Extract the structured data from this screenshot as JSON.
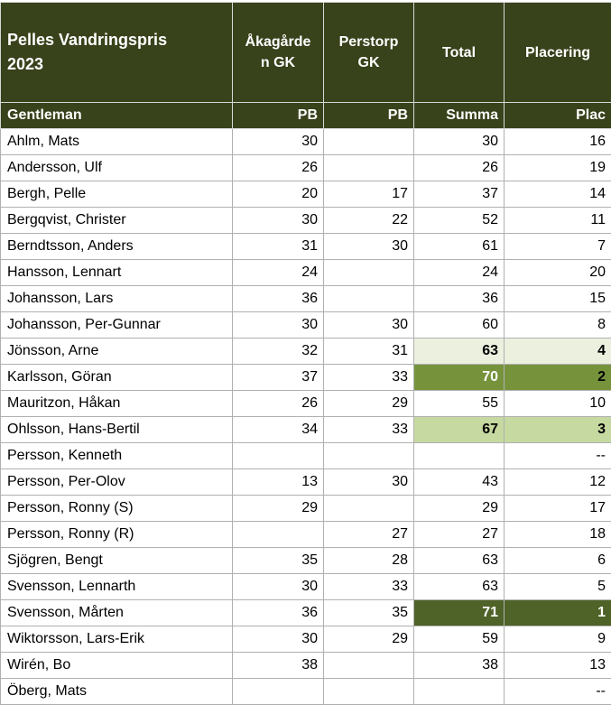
{
  "colors": {
    "header_bg": "#38421B",
    "rank1_bg": "#4F6228",
    "rank2_bg": "#76933C",
    "rank3_bg": "#C6D9A0",
    "rank4_bg": "#EBF1DE",
    "grid_line": "#B0B0B0",
    "header_line": "#D8D8D8",
    "text_dark": "#000000",
    "text_light": "#FFFFFF"
  },
  "table": {
    "title": "Pelles Vandringspris\n2023",
    "columns": {
      "akagarden": "Åkagårde\nn GK",
      "perstorp": "Perstorp\nGK",
      "total": "Total",
      "placering": "Placering"
    },
    "subheader": {
      "gentleman": "Gentleman",
      "pb1": "PB",
      "pb2": "PB",
      "summa": "Summa",
      "plac": "Plac"
    },
    "rows": [
      {
        "name": "Ahlm, Mats",
        "akagarden": "30",
        "perstorp": "",
        "total": "30",
        "placering": "16",
        "highlight": ""
      },
      {
        "name": "Andersson, Ulf",
        "akagarden": "26",
        "perstorp": "",
        "total": "26",
        "placering": "19",
        "highlight": ""
      },
      {
        "name": "Bergh, Pelle",
        "akagarden": "20",
        "perstorp": "17",
        "total": "37",
        "placering": "14",
        "highlight": ""
      },
      {
        "name": "Bergqvist, Christer",
        "akagarden": "30",
        "perstorp": "22",
        "total": "52",
        "placering": "11",
        "highlight": ""
      },
      {
        "name": "Berndtsson, Anders",
        "akagarden": "31",
        "perstorp": "30",
        "total": "61",
        "placering": "7",
        "highlight": ""
      },
      {
        "name": "Hansson, Lennart",
        "akagarden": "24",
        "perstorp": "",
        "total": "24",
        "placering": "20",
        "highlight": ""
      },
      {
        "name": "Johansson, Lars",
        "akagarden": "36",
        "perstorp": "",
        "total": "36",
        "placering": "15",
        "highlight": ""
      },
      {
        "name": "Johansson, Per-Gunnar",
        "akagarden": "30",
        "perstorp": "30",
        "total": "60",
        "placering": "8",
        "highlight": ""
      },
      {
        "name": "Jönsson, Arne",
        "akagarden": "32",
        "perstorp": "31",
        "total": "63",
        "placering": "4",
        "highlight": "hl4"
      },
      {
        "name": "Karlsson, Göran",
        "akagarden": "37",
        "perstorp": "33",
        "total": "70",
        "placering": "2",
        "highlight": "hl2"
      },
      {
        "name": "Mauritzon, Håkan",
        "akagarden": "26",
        "perstorp": "29",
        "total": "55",
        "placering": "10",
        "highlight": ""
      },
      {
        "name": "Ohlsson, Hans-Bertil",
        "akagarden": "34",
        "perstorp": "33",
        "total": "67",
        "placering": "3",
        "highlight": "hl3"
      },
      {
        "name": "Persson, Kenneth",
        "akagarden": "",
        "perstorp": "",
        "total": "",
        "placering": "--",
        "highlight": ""
      },
      {
        "name": "Persson, Per-Olov",
        "akagarden": "13",
        "perstorp": "30",
        "total": "43",
        "placering": "12",
        "highlight": ""
      },
      {
        "name": "Persson, Ronny (S)",
        "akagarden": "29",
        "perstorp": "",
        "total": "29",
        "placering": "17",
        "highlight": ""
      },
      {
        "name": "Persson, Ronny (R)",
        "akagarden": "",
        "perstorp": "27",
        "total": "27",
        "placering": "18",
        "highlight": ""
      },
      {
        "name": "Sjögren, Bengt",
        "akagarden": "35",
        "perstorp": "28",
        "total": "63",
        "placering": "6",
        "highlight": ""
      },
      {
        "name": "Svensson, Lennarth",
        "akagarden": "30",
        "perstorp": "33",
        "total": "63",
        "placering": "5",
        "highlight": ""
      },
      {
        "name": "Svensson, Mårten",
        "akagarden": "36",
        "perstorp": "35",
        "total": "71",
        "placering": "1",
        "highlight": "hl1"
      },
      {
        "name": "Wiktorsson, Lars-Erik",
        "akagarden": "30",
        "perstorp": "29",
        "total": "59",
        "placering": "9",
        "highlight": ""
      },
      {
        "name": "Wirén, Bo",
        "akagarden": "38",
        "perstorp": "",
        "total": "38",
        "placering": "13",
        "highlight": ""
      },
      {
        "name": "Öberg, Mats",
        "akagarden": "",
        "perstorp": "",
        "total": "",
        "placering": "--",
        "highlight": ""
      }
    ]
  }
}
